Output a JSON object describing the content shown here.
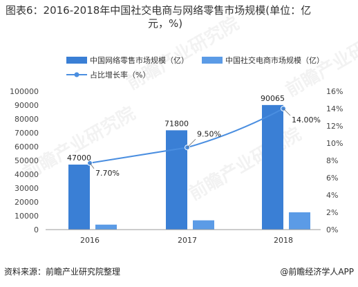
{
  "title_line1": "图表6：2016-2018年中国社交电商与网络零售市场规模(单位：亿",
  "title_line2": "元，%)",
  "source": "资料来源：前瞻产业研究院整理",
  "brand": "@前瞻经济学人APP",
  "watermark": "前瞻产业研究院",
  "colors": {
    "bar1": "#3a7fd5",
    "bar2": "#5b9be6",
    "line": "#4a8ee0"
  },
  "chart_data": {
    "type": "bar",
    "categories": [
      "2016",
      "2017",
      "2018"
    ],
    "series": [
      {
        "name": "中国网络零售市场规模（亿）",
        "type": "bar",
        "axis": "left",
        "values": [
          47000,
          71800,
          90065
        ],
        "labels": [
          "47000",
          "71800",
          "90065"
        ]
      },
      {
        "name": "中国社交电商市场规模（亿）",
        "type": "bar",
        "axis": "left",
        "values": [
          3600,
          6700,
          12500
        ]
      },
      {
        "name": "占比增长率（%）",
        "type": "line",
        "axis": "right",
        "values": [
          7.7,
          9.5,
          14.0
        ],
        "labels": [
          "7.70%",
          "9.50%",
          "14.00%"
        ]
      }
    ],
    "y_left": {
      "min": 0,
      "max": 100000,
      "ticks": [
        "0",
        "10000",
        "20000",
        "30000",
        "40000",
        "50000",
        "60000",
        "70000",
        "80000",
        "90000",
        "100000"
      ]
    },
    "y_right": {
      "min": 0,
      "max": 16,
      "ticks": [
        "0%",
        "2%",
        "4%",
        "6%",
        "8%",
        "10%",
        "12%",
        "14%",
        "16%"
      ]
    },
    "legend_position": "top",
    "grid": false
  }
}
